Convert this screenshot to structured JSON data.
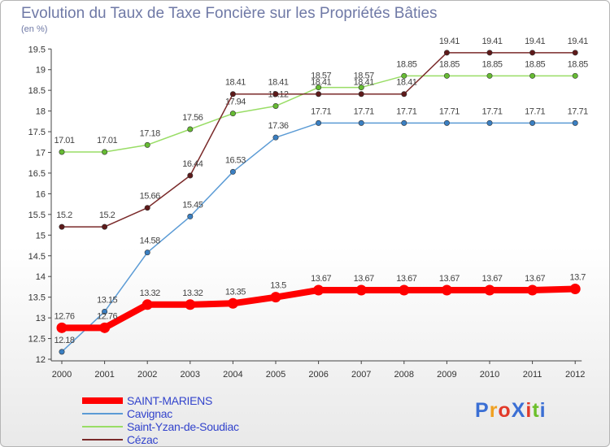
{
  "header": {
    "title": "Evolution du Taux de Taxe Foncière sur les Propriétés Bâties",
    "subtitle": "(en %)"
  },
  "logo": {
    "text": "ProXiti",
    "colors": [
      "#3b6fd4",
      "#f0a020",
      "#e23a2a",
      "#3b6fd4",
      "#e23a2a",
      "#6bbf2a",
      "#3b6fd4"
    ]
  },
  "chart_data": {
    "type": "line",
    "title": "Evolution du Taux de Taxe Foncière sur les Propriétés Bâties",
    "ylabel": "(en %)",
    "xlabel": "",
    "x": [
      "2000",
      "2001",
      "2002",
      "2003",
      "2004",
      "2005",
      "2006",
      "2007",
      "2008",
      "2009",
      "2010",
      "2011",
      "2012"
    ],
    "ylim": [
      12,
      19.5
    ],
    "yticks": [
      "12",
      "12.5",
      "13",
      "13.5",
      "14",
      "14.5",
      "15",
      "15.5",
      "16",
      "16.5",
      "17",
      "17.5",
      "18",
      "18.5",
      "19",
      "19.5"
    ],
    "grid": false,
    "legend": "bottom-left",
    "series": [
      {
        "name": "Cavignac",
        "color": "#5b9bd5",
        "marker": "#3a7fc2",
        "values": [
          12.18,
          13.15,
          14.58,
          15.45,
          16.53,
          17.36,
          17.71,
          17.71,
          17.71,
          17.71,
          17.71,
          17.71,
          17.71
        ],
        "labels": [
          "12.18",
          "13.15",
          "14.58",
          "15.45",
          "16.53",
          "17.36",
          "17.71",
          "17.71",
          "17.71",
          "17.71",
          "17.71",
          "17.71",
          "17.71"
        ]
      },
      {
        "name": "Saint-Yzan-de-Soudiac",
        "color": "#99dd66",
        "marker": "#66bb33",
        "values": [
          17.01,
          17.01,
          17.18,
          17.56,
          17.94,
          18.12,
          18.57,
          18.57,
          18.85,
          18.85,
          18.85,
          18.85,
          18.85
        ],
        "labels": [
          "17.01",
          "17.01",
          "17.18",
          "17.56",
          "17.94",
          "18.12",
          "18.57",
          "18.57",
          "18.85",
          "18.85",
          "18.85",
          "18.85",
          "18.85"
        ]
      },
      {
        "name": "Cézac",
        "color": "#7a2a2a",
        "marker": "#5e1a1a",
        "values": [
          15.2,
          15.2,
          15.66,
          16.44,
          18.41,
          18.41,
          18.41,
          18.41,
          18.41,
          19.41,
          19.41,
          19.41,
          19.41
        ],
        "labels": [
          "15.2",
          "15.2",
          "15.66",
          "16.44",
          "18.41",
          "18.41",
          "18.41",
          "18.41",
          "18.41",
          "19.41",
          "19.41",
          "19.41",
          "19.41"
        ]
      },
      {
        "name": "SAINT-MARIENS",
        "color": "#ff0000",
        "marker": "#ff0000",
        "values": [
          12.76,
          12.76,
          13.32,
          13.32,
          13.35,
          13.5,
          13.67,
          13.67,
          13.67,
          13.67,
          13.67,
          13.67,
          13.7
        ],
        "labels": [
          "12.76",
          "12.76",
          "13.32",
          "13.32",
          "13.35",
          "13.5",
          "13.67",
          "13.67",
          "13.67",
          "13.67",
          "13.67",
          "13.67",
          "13.7"
        ]
      }
    ]
  },
  "legend_order": [
    "SAINT-MARIENS",
    "Cavignac",
    "Saint-Yzan-de-Soudiac",
    "Cézac"
  ]
}
